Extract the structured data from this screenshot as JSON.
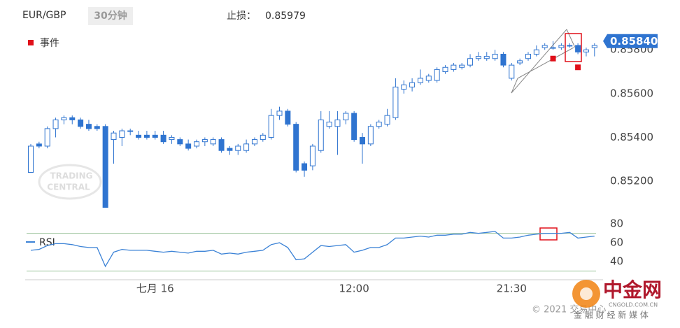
{
  "chart_data": {
    "type": "candlestick",
    "title": "EUR/GBP",
    "interval": "30分钟",
    "stop_loss_label": "止损：",
    "stop_loss": {
      "value": 0.85979,
      "label": "0.85979"
    },
    "color": "#2f74d0",
    "categories": [
      null,
      null,
      null,
      null,
      null,
      null,
      null,
      null,
      null,
      null,
      null,
      null,
      null,
      null,
      null,
      "七月 16",
      null,
      null,
      null,
      null,
      null,
      null,
      null,
      null,
      null,
      null,
      null,
      null,
      null,
      null,
      null,
      null,
      null,
      null,
      null,
      null,
      null,
      null,
      null,
      "12:00",
      null,
      null,
      null,
      null,
      null,
      null,
      null,
      null,
      null,
      null,
      null,
      null,
      null,
      null,
      null,
      null,
      null,
      null,
      "21:30",
      null,
      null,
      null,
      null,
      null,
      null,
      null,
      null,
      null,
      null
    ],
    "open": [
      0.8524,
      0.8537,
      0.8536,
      0.8544,
      0.8548,
      0.8549,
      0.8548,
      0.8546,
      0.8545,
      0.8545,
      0.8539,
      0.854,
      0.8543,
      0.8541,
      0.8541,
      0.8541,
      0.8541,
      0.8539,
      0.8539,
      0.8537,
      0.8536,
      0.8538,
      0.8537,
      0.8539,
      0.8535,
      0.8534,
      0.8534,
      0.8537,
      0.8539,
      0.854,
      0.855,
      0.8552,
      0.8546,
      0.8528,
      0.8527,
      0.8534,
      0.8545,
      0.8545,
      0.8548,
      0.8551,
      0.854,
      0.8537,
      0.8545,
      0.8546,
      0.8549,
      0.8562,
      0.8563,
      0.8565,
      0.8566,
      0.8566,
      0.857,
      0.8571,
      0.8572,
      0.8573,
      0.8576,
      0.8576,
      0.8576,
      0.8578,
      0.8567,
      0.8574,
      0.8576,
      0.8578,
      0.8581,
      0.8581,
      0.8581,
      0.8582,
      0.8582,
      0.8579,
      0.8581
    ],
    "high": [
      0.8537,
      0.8538,
      0.8545,
      0.8549,
      0.855,
      0.855,
      0.8549,
      0.8548,
      0.8546,
      0.8546,
      0.8543,
      0.8544,
      0.8544,
      0.8543,
      0.8543,
      0.8543,
      0.8543,
      0.8541,
      0.854,
      0.8539,
      0.8539,
      0.854,
      0.854,
      0.854,
      0.8536,
      0.8537,
      0.8539,
      0.854,
      0.8542,
      0.8553,
      0.8554,
      0.8553,
      0.8547,
      0.8529,
      0.8537,
      0.8552,
      0.8552,
      0.8552,
      0.8552,
      0.8552,
      0.8542,
      0.8546,
      0.8548,
      0.8553,
      0.8567,
      0.8566,
      0.8567,
      0.8571,
      0.8569,
      0.8572,
      0.8573,
      0.8574,
      0.8574,
      0.8578,
      0.8579,
      0.8579,
      0.858,
      0.8579,
      0.8574,
      0.8576,
      0.8579,
      0.8582,
      0.8583,
      0.8584,
      0.8583,
      0.8583,
      0.8583,
      0.8581,
      0.8583
    ],
    "low": [
      0.8524,
      0.8535,
      0.8535,
      0.854,
      0.8546,
      0.8546,
      0.8544,
      0.8543,
      0.8543,
      0.8508,
      0.8528,
      0.8536,
      0.8541,
      0.8539,
      0.8539,
      0.8539,
      0.8537,
      0.8537,
      0.8536,
      0.8534,
      0.8535,
      0.8536,
      0.8536,
      0.8533,
      0.8532,
      0.8532,
      0.8533,
      0.8536,
      0.8538,
      0.8539,
      0.8548,
      0.8545,
      0.8524,
      0.8522,
      0.8525,
      0.8533,
      0.8544,
      0.8532,
      0.8546,
      0.8538,
      0.8528,
      0.8536,
      0.8544,
      0.8545,
      0.8548,
      0.856,
      0.8561,
      0.8564,
      0.8565,
      0.8565,
      0.8569,
      0.857,
      0.8571,
      0.8572,
      0.8575,
      0.8575,
      0.8575,
      0.8572,
      0.8566,
      0.8573,
      0.8575,
      0.8577,
      0.858,
      0.858,
      0.858,
      0.8581,
      0.8578,
      0.8577,
      0.8577
    ],
    "close": [
      0.8536,
      0.8536,
      0.8544,
      0.8548,
      0.8549,
      0.8548,
      0.8545,
      0.8544,
      0.8544,
      0.8508,
      0.8542,
      0.8543,
      0.8543,
      0.854,
      0.854,
      0.854,
      0.8538,
      0.854,
      0.8537,
      0.8535,
      0.8538,
      0.8539,
      0.8539,
      0.8534,
      0.8534,
      0.8536,
      0.8537,
      0.8539,
      0.8541,
      0.855,
      0.8552,
      0.8546,
      0.8525,
      0.8525,
      0.8536,
      0.8548,
      0.8547,
      0.8548,
      0.8551,
      0.8539,
      0.8537,
      0.8545,
      0.8547,
      0.855,
      0.8563,
      0.8564,
      0.8565,
      0.8567,
      0.8568,
      0.8571,
      0.8572,
      0.8573,
      0.8573,
      0.8576,
      0.8577,
      0.8577,
      0.8578,
      0.8573,
      0.8573,
      0.8575,
      0.8578,
      0.858,
      0.8582,
      0.8581,
      0.8582,
      0.8582,
      0.8579,
      0.858,
      0.8582
    ],
    "ylim": [
      0.8505,
      0.8597
    ],
    "yticks": [
      {
        "value": 0.852,
        "label": "0.85200"
      },
      {
        "value": 0.854,
        "label": "0.85400"
      },
      {
        "value": 0.856,
        "label": "0.85600"
      },
      {
        "value": 0.858,
        "label": "0.85800"
      }
    ],
    "last_price": {
      "value": 0.8584,
      "label": "0.85840"
    },
    "events": {
      "name": "事件",
      "color": "#e0101a",
      "values": [
        null,
        null,
        null,
        null,
        null,
        null,
        null,
        null,
        null,
        null,
        null,
        null,
        null,
        null,
        null,
        null,
        null,
        null,
        null,
        null,
        null,
        null,
        null,
        null,
        null,
        null,
        null,
        null,
        null,
        null,
        null,
        null,
        null,
        null,
        null,
        null,
        null,
        null,
        null,
        null,
        null,
        null,
        null,
        null,
        null,
        null,
        null,
        null,
        null,
        null,
        null,
        null,
        null,
        null,
        null,
        null,
        null,
        null,
        null,
        null,
        null,
        null,
        null,
        0.8576,
        null,
        null,
        0.8572,
        null,
        null
      ]
    },
    "rsi": {
      "name": "RSI",
      "color": "#3b82d6",
      "values": [
        52,
        53,
        57,
        59,
        59,
        58,
        56,
        55,
        55,
        35,
        50,
        53,
        52,
        52,
        52,
        51,
        50,
        51,
        50,
        49,
        51,
        51,
        52,
        48,
        49,
        48,
        50,
        51,
        52,
        58,
        60,
        55,
        42,
        43,
        50,
        57,
        56,
        57,
        58,
        50,
        52,
        55,
        55,
        58,
        65,
        65,
        66,
        67,
        66,
        68,
        68,
        69,
        69,
        71,
        70,
        71,
        72,
        65,
        65,
        66,
        68,
        69,
        70,
        70,
        70,
        71,
        65,
        66,
        67
      ],
      "ylim": [
        26,
        86
      ],
      "yticks": [
        40,
        60,
        80
      ],
      "levels": [
        70,
        30
      ]
    },
    "watermark": [
      "TRADING",
      "CENTRAL"
    ]
  },
  "footer": {
    "copyright": "© 2021 交易中心",
    "brand": "中金网",
    "domain": "CNGOLD.COM.CN",
    "slogan": "金 融 财 经 新 媒 体"
  }
}
